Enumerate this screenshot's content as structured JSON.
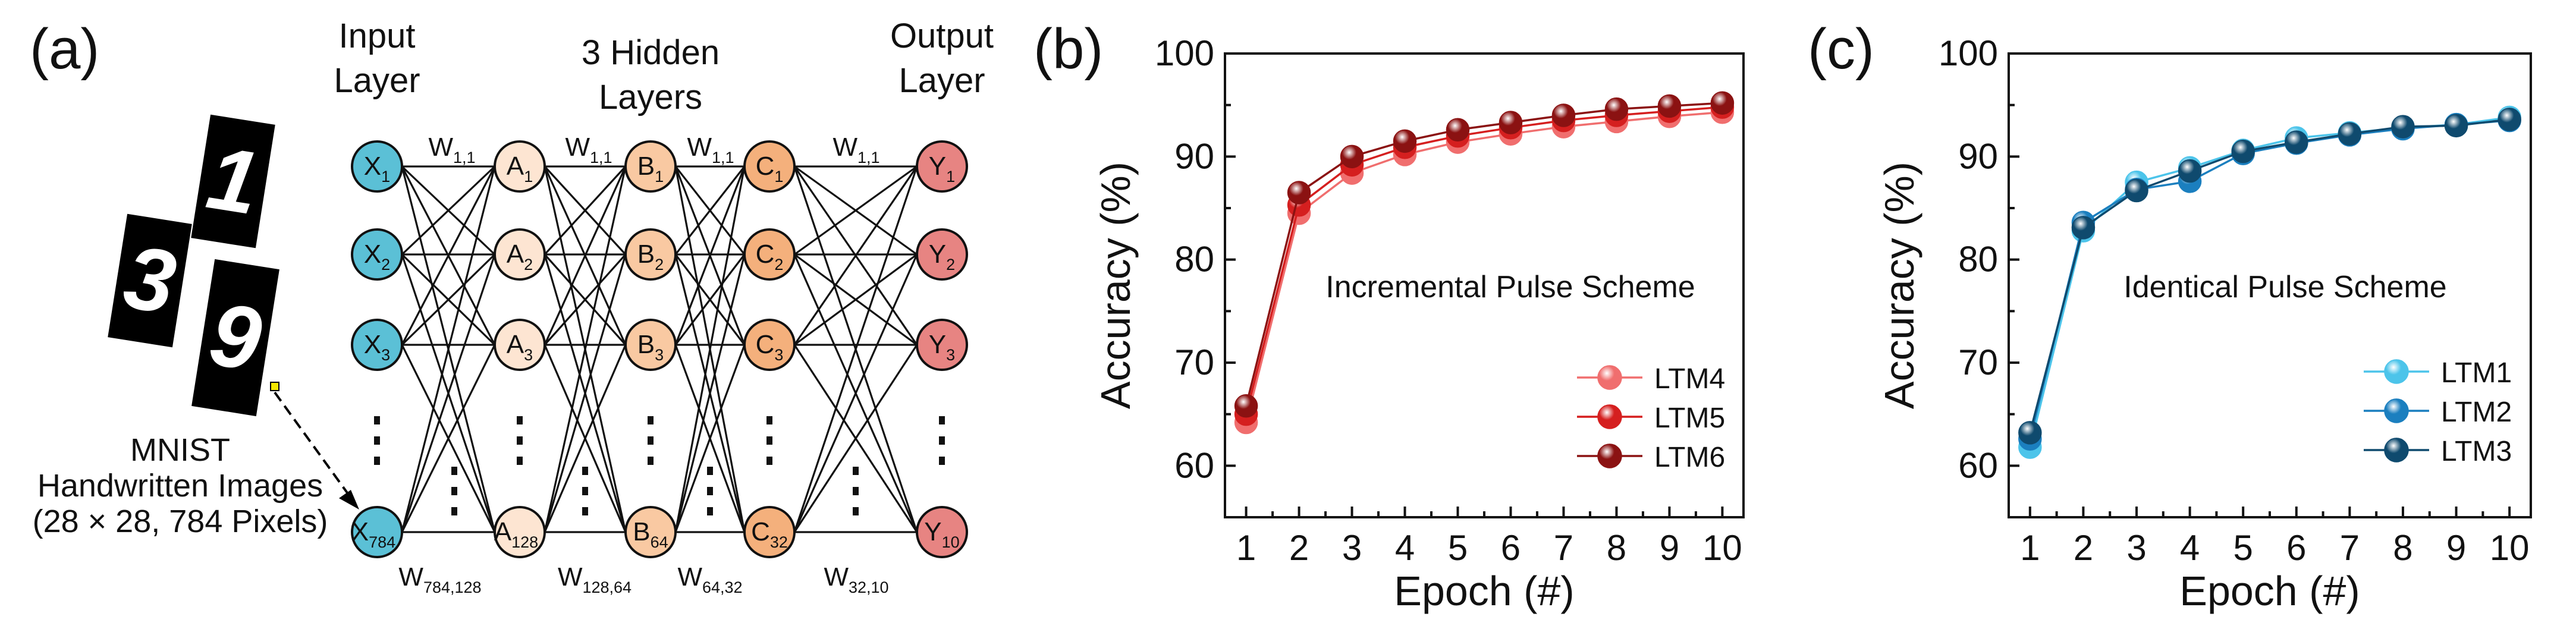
{
  "network": {
    "panel_label": "(a)",
    "layer_titles": {
      "input": [
        "Input",
        "Layer"
      ],
      "hidden": [
        "3 Hidden",
        "Layers"
      ],
      "output": [
        "Output",
        "Layer"
      ]
    },
    "nodes": {
      "input": [
        {
          "base": "X",
          "sub": "1"
        },
        {
          "base": "X",
          "sub": "2"
        },
        {
          "base": "X",
          "sub": "3"
        },
        {
          "base": "X",
          "sub": "784"
        }
      ],
      "hidden1": [
        {
          "base": "A",
          "sub": "1"
        },
        {
          "base": "A",
          "sub": "2"
        },
        {
          "base": "A",
          "sub": "3"
        },
        {
          "base": "A",
          "sub": "128"
        }
      ],
      "hidden2": [
        {
          "base": "B",
          "sub": "1"
        },
        {
          "base": "B",
          "sub": "2"
        },
        {
          "base": "B",
          "sub": "3"
        },
        {
          "base": "B",
          "sub": "64"
        }
      ],
      "hidden3": [
        {
          "base": "C",
          "sub": "1"
        },
        {
          "base": "C",
          "sub": "2"
        },
        {
          "base": "C",
          "sub": "3"
        },
        {
          "base": "C",
          "sub": "32"
        }
      ],
      "output": [
        {
          "base": "Y",
          "sub": "1"
        },
        {
          "base": "Y",
          "sub": "2"
        },
        {
          "base": "Y",
          "sub": "3"
        },
        {
          "base": "Y",
          "sub": "10"
        }
      ]
    },
    "top_weights": [
      {
        "base": "W",
        "sub": "1,1"
      },
      {
        "base": "W",
        "sub": "1,1"
      },
      {
        "base": "W",
        "sub": "1,1"
      },
      {
        "base": "W",
        "sub": "1,1"
      }
    ],
    "bottom_weights": [
      {
        "base": "W",
        "sub": "784,128"
      },
      {
        "base": "W",
        "sub": "128,64"
      },
      {
        "base": "W",
        "sub": "64,32"
      },
      {
        "base": "W",
        "sub": "32,10"
      }
    ],
    "digit_images": [
      "3",
      "1",
      "9"
    ],
    "mnist_caption": [
      "MNIST",
      "Handwritten Images",
      "(28 × 28, 784 Pixels)"
    ],
    "colors": {
      "input": "#5bc0d6",
      "hidden1": "#fde5d2",
      "hidden2": "#f9c9a2",
      "hidden3": "#f4b07c",
      "output": "#e78482"
    }
  },
  "chart_data": [
    {
      "panel_label": "(b)",
      "type": "line",
      "annotation": "Incremental Pulse Scheme",
      "xlabel": "Epoch (#)",
      "ylabel": "Accuracy (%)",
      "xlim": [
        0.6,
        10.4
      ],
      "ylim": [
        55,
        100
      ],
      "x_ticks": [
        1,
        2,
        3,
        4,
        5,
        6,
        7,
        8,
        9,
        10
      ],
      "y_ticks": [
        60,
        70,
        80,
        90,
        100
      ],
      "legend_position": "bottom-right",
      "x": [
        1,
        2,
        3,
        4,
        5,
        6,
        7,
        8,
        9,
        10
      ],
      "series": [
        {
          "name": "LTM4",
          "color": "#f06e6e",
          "values": [
            64.2,
            84.5,
            88.4,
            90.2,
            91.4,
            92.2,
            92.9,
            93.4,
            93.9,
            94.3
          ]
        },
        {
          "name": "LTM5",
          "color": "#d51f1f",
          "values": [
            65.0,
            85.3,
            89.2,
            90.9,
            92.0,
            92.8,
            93.5,
            94.0,
            94.4,
            94.8
          ]
        },
        {
          "name": "LTM6",
          "color": "#8b1212",
          "values": [
            65.8,
            86.5,
            90.0,
            91.5,
            92.6,
            93.3,
            94.0,
            94.6,
            94.9,
            95.2
          ]
        }
      ]
    },
    {
      "panel_label": "(c)",
      "type": "line",
      "annotation": "Identical Pulse Scheme",
      "xlabel": "Epoch (#)",
      "ylabel": "Accuracy (%)",
      "xlim": [
        0.6,
        10.4
      ],
      "ylim": [
        55,
        100
      ],
      "x_ticks": [
        1,
        2,
        3,
        4,
        5,
        6,
        7,
        8,
        9,
        10
      ],
      "y_ticks": [
        60,
        70,
        80,
        90,
        100
      ],
      "legend_position": "bottom-right",
      "x": [
        1,
        2,
        3,
        4,
        5,
        6,
        7,
        8,
        9,
        10
      ],
      "series": [
        {
          "name": "LTM1",
          "color": "#4cc4ea",
          "values": [
            61.8,
            82.8,
            87.5,
            88.9,
            90.6,
            91.8,
            92.3,
            92.8,
            93.1,
            93.8
          ]
        },
        {
          "name": "LTM2",
          "color": "#1b7fbf",
          "values": [
            62.6,
            83.6,
            86.8,
            87.6,
            90.3,
            91.3,
            92.1,
            92.7,
            93.1,
            93.5
          ]
        },
        {
          "name": "LTM3",
          "color": "#0f4a6e",
          "values": [
            63.2,
            83.1,
            86.7,
            88.6,
            90.5,
            91.4,
            92.2,
            92.9,
            93.0,
            93.6
          ]
        }
      ]
    }
  ]
}
